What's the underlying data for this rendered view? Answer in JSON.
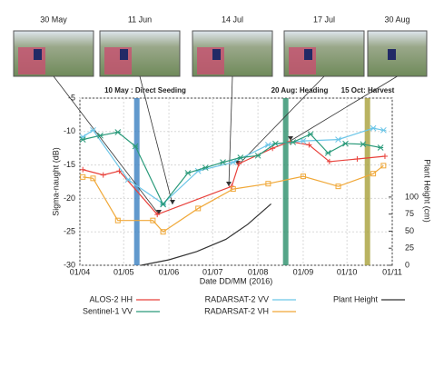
{
  "chart_data": {
    "type": "line",
    "photos": [
      {
        "label": "30 May",
        "x": "2016-05-30"
      },
      {
        "label": "11 Jun",
        "x": "2016-06-11"
      },
      {
        "label": "14 Jul",
        "x": "2016-07-14"
      },
      {
        "label": "17 Jul",
        "x": "2016-07-17"
      },
      {
        "label": "30 Aug",
        "x": "2016-08-30"
      }
    ],
    "annotations": [
      {
        "text": "10 May : Direct Seeding",
        "x": "2016-05-10",
        "color": "#3a7fc0"
      },
      {
        "text": "20 Aug: Heading",
        "x": "2016-08-20",
        "color": "#2a8f6a"
      },
      {
        "text": "15 Oct: Harvest",
        "x": "2016-10-15",
        "color": "#a8a03a"
      }
    ],
    "x_label": "Date DD/MM (2016)",
    "y_label": "Sigma-naught (dB)",
    "y2_label": "Plant Height (cm)",
    "xlim": [
      "2016-04-01",
      "2016-11-01"
    ],
    "xticks": [
      {
        "value": "2016-04-01",
        "label": "01/04"
      },
      {
        "value": "2016-05-01",
        "label": "01/05"
      },
      {
        "value": "2016-06-01",
        "label": "01/06"
      },
      {
        "value": "2016-07-01",
        "label": "01/07"
      },
      {
        "value": "2016-08-01",
        "label": "01/08"
      },
      {
        "value": "2016-09-01",
        "label": "01/09"
      },
      {
        "value": "2016-10-01",
        "label": "01/10"
      },
      {
        "value": "2016-11-01",
        "label": "01/11"
      }
    ],
    "ylim": [
      -30,
      -5
    ],
    "yticks": [
      -30,
      -25,
      -20,
      -15,
      -10,
      -5
    ],
    "y2lim": [
      0,
      245
    ],
    "y2ticks": [
      0,
      25,
      50,
      75,
      100
    ],
    "grid": true,
    "series": [
      {
        "name": "ALOS-2 HH",
        "color": "#e8403a",
        "marker": "plus",
        "x": [
          "2016-04-03",
          "2016-04-17",
          "2016-04-28",
          "2016-05-24",
          "2016-07-14",
          "2016-07-19",
          "2016-08-11",
          "2016-08-23",
          "2016-09-05",
          "2016-09-19",
          "2016-10-08",
          "2016-10-27"
        ],
        "values": [
          -15.7,
          -16.5,
          -15.9,
          -22.4,
          -18.2,
          -14.8,
          -12.5,
          -11.5,
          -12.0,
          -14.5,
          -14.1,
          -13.7
        ]
      },
      {
        "name": "RADARSAT-2 VV",
        "color": "#6cc6e8",
        "marker": "star",
        "x": [
          "2016-04-03",
          "2016-04-10",
          "2016-05-04",
          "2016-05-28",
          "2016-06-21",
          "2016-07-15",
          "2016-08-08",
          "2016-09-01",
          "2016-09-25",
          "2016-10-19",
          "2016-10-26"
        ],
        "values": [
          -10.8,
          -9.8,
          -17.2,
          -20.8,
          -15.9,
          -14.6,
          -12.0,
          -11.4,
          -11.2,
          -9.5,
          -9.8
        ]
      },
      {
        "name": "Sentinel-1 VV",
        "color": "#2a9a7a",
        "marker": "star",
        "x": [
          "2016-04-03",
          "2016-04-15",
          "2016-04-27",
          "2016-05-09",
          "2016-05-28",
          "2016-06-14",
          "2016-06-26",
          "2016-07-08",
          "2016-07-20",
          "2016-08-01",
          "2016-08-13",
          "2016-08-25",
          "2016-09-06",
          "2016-09-18",
          "2016-09-30",
          "2016-10-12",
          "2016-10-24"
        ],
        "values": [
          -11.2,
          -10.6,
          -10.1,
          -12.2,
          -20.9,
          -16.2,
          -15.4,
          -14.6,
          -13.9,
          -13.6,
          -11.8,
          -11.6,
          -10.4,
          -13.2,
          -11.8,
          -11.9,
          -12.4
        ]
      },
      {
        "name": "RADARSAT-2 VH",
        "color": "#f0a838",
        "marker": "square",
        "x": [
          "2016-04-03",
          "2016-04-10",
          "2016-04-27",
          "2016-05-21",
          "2016-05-28",
          "2016-06-21",
          "2016-07-15",
          "2016-08-08",
          "2016-09-01",
          "2016-09-25",
          "2016-10-19",
          "2016-10-26"
        ],
        "values": [
          -16.8,
          -17.0,
          -23.3,
          -23.3,
          -25.0,
          -21.5,
          -18.6,
          -17.8,
          -16.7,
          -18.2,
          -16.3,
          -15.1
        ]
      },
      {
        "name": "Plant Height",
        "color": "#333333",
        "marker": "none",
        "axis": "y2",
        "x": [
          "2016-05-13",
          "2016-06-01",
          "2016-06-20",
          "2016-07-10",
          "2016-07-25",
          "2016-08-10"
        ],
        "values": [
          0,
          8,
          20,
          38,
          60,
          90
        ]
      }
    ]
  }
}
